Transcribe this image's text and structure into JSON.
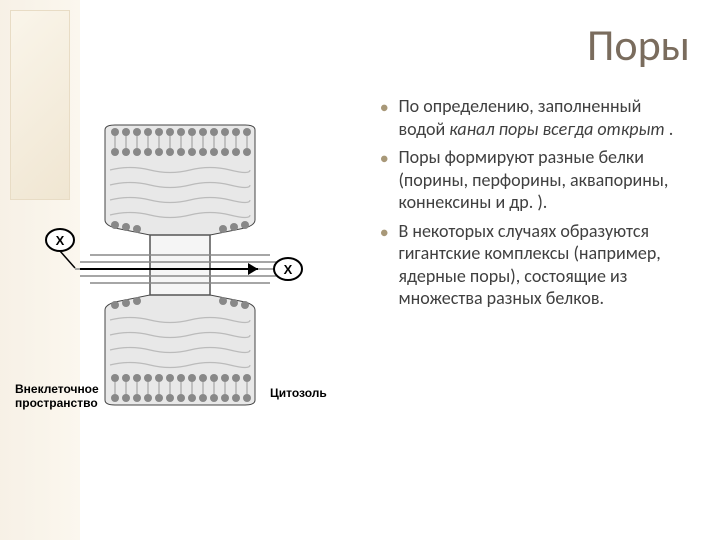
{
  "title": "Поры",
  "diagram": {
    "label_extracellular": "Внеклеточное пространство",
    "label_cytosol": "Цитозоль",
    "x_marker": "X",
    "colors": {
      "cell_fill": "#e8e8e8",
      "membrane_dark": "#888888",
      "membrane_light": "#c0c0c0",
      "channel_line": "#666666",
      "outline": "#333333",
      "arrow": "#000000",
      "badge_fill": "#ffffff",
      "badge_stroke": "#000000"
    }
  },
  "bullets": [
    {
      "parts": [
        {
          "text": "По определению, заполненный водой ",
          "italic": false
        },
        {
          "text": "канал поры всегда открыт",
          "italic": true
        },
        {
          "text": " .",
          "italic": false
        }
      ]
    },
    {
      "parts": [
        {
          "text": "Поры формируют разные белки (порины, перфорины, аквапорины, коннексины и др. ).",
          "italic": false
        }
      ]
    },
    {
      "parts": [
        {
          "text": "В некоторых случаях образуются гигантские комплексы (например, ядерные поры), состоящие из множества разных белков.",
          "italic": false
        }
      ]
    }
  ]
}
